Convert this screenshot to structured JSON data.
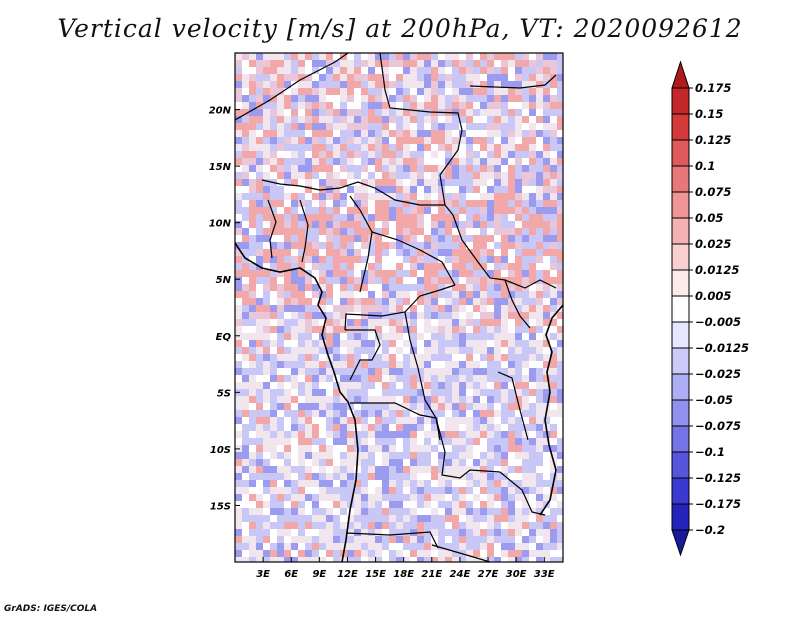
{
  "title": "Vertical velocity [m/s] at 200hPa, VT: 2020092612",
  "footer": "GrADS: IGES/COLA",
  "map": {
    "lon_range": [
      0,
      35
    ],
    "lat_range": [
      -20,
      25
    ],
    "lat_ticks": [
      "20N",
      "15N",
      "10N",
      "5N",
      "EQ",
      "5S",
      "10S",
      "15S"
    ],
    "lon_ticks": [
      "3E",
      "6E",
      "9E",
      "12E",
      "15E",
      "18E",
      "21E",
      "24E",
      "27E",
      "30E",
      "33E"
    ],
    "background_colors": [
      "#ffffff",
      "#f1e6ee",
      "#c9c7f6",
      "#f2a8a8",
      "#9b9bf0",
      "#e9c6d8"
    ]
  },
  "colorbar": {
    "labels": [
      "0.175",
      "0.15",
      "0.125",
      "0.1",
      "0.075",
      "0.05",
      "0.025",
      "0.0125",
      "0.005",
      "−0.005",
      "−0.0125",
      "−0.025",
      "−0.05",
      "−0.075",
      "−0.1",
      "−0.125",
      "−0.175",
      "−0.2"
    ],
    "colors": [
      "#b01a1a",
      "#c42727",
      "#d43a3a",
      "#df5a5a",
      "#e77878",
      "#ee9595",
      "#f4b2b2",
      "#f9d0d0",
      "#fdeaea",
      "#ffffff",
      "#e6e6ff",
      "#cbcbf9",
      "#aeaef4",
      "#9191ee",
      "#7474e6",
      "#5656dd",
      "#3a3ad0",
      "#2424bb",
      "#1a1a9c"
    ]
  }
}
